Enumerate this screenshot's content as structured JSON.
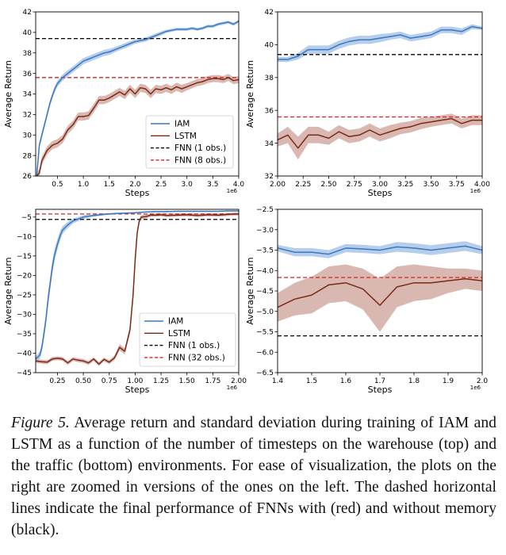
{
  "colors": {
    "iam": "#3a78c0",
    "iam_band": "#a9c6e8",
    "lstm": "#7b2a16",
    "lstm_band": "#d4aca5",
    "fnn_black": "#000000",
    "fnn_red": "#dd2222"
  },
  "caption": {
    "figure_label": "Figure 5.",
    "text": "Average return and standard deviation during training of IAM and LSTM as a function of the number of timesteps on the warehouse (top) and the traffic (bottom) environments. For ease of visualization, the plots on the right are zoomed in versions of the ones on the left. The dashed horizontal lines indicate the final performance of FNNs with (red) and without memory (black)."
  },
  "chart_data": [
    {
      "id": "warehouse-full",
      "type": "line",
      "xlabel": "Steps",
      "ylabel": "Average Return",
      "x_exponent": "1e6",
      "xlim": [
        0.08,
        4.0
      ],
      "ylim": [
        26,
        42
      ],
      "xticks": [
        0.5,
        1.0,
        1.5,
        2.0,
        2.5,
        3.0,
        3.5,
        4.0
      ],
      "xtick_labels": [
        "0.5",
        "1.0",
        "1.5",
        "2.0",
        "2.5",
        "3.0",
        "3.5",
        "4.0"
      ],
      "yticks": [
        26,
        28,
        30,
        32,
        34,
        36,
        38,
        40,
        42
      ],
      "ytick_labels": [
        "26",
        "28",
        "30",
        "32",
        "34",
        "36",
        "38",
        "40",
        "42"
      ],
      "legend": {
        "position": "lower-right",
        "entries": [
          {
            "label": "IAM",
            "style": "solid",
            "color_key": "iam"
          },
          {
            "label": "LSTM",
            "style": "solid",
            "color_key": "lstm"
          },
          {
            "label": "FNN (1 obs.)",
            "style": "dashed",
            "color_key": "fnn_black"
          },
          {
            "label": "FNN (8 obs.)",
            "style": "dashed",
            "color_key": "fnn_red"
          }
        ]
      },
      "hlines": [
        {
          "y": 39.4,
          "color_key": "fnn_black"
        },
        {
          "y": 35.6,
          "color_key": "fnn_red"
        }
      ],
      "series": [
        {
          "name": "IAM",
          "color_key": "iam",
          "band_key": "iam_band",
          "x": [
            0.1,
            0.15,
            0.2,
            0.25,
            0.3,
            0.35,
            0.4,
            0.45,
            0.5,
            0.55,
            0.6,
            0.7,
            0.8,
            0.9,
            1.0,
            1.1,
            1.2,
            1.3,
            1.4,
            1.5,
            1.6,
            1.7,
            1.8,
            1.9,
            2.0,
            2.1,
            2.2,
            2.3,
            2.4,
            2.5,
            2.6,
            2.7,
            2.8,
            2.9,
            3.0,
            3.1,
            3.2,
            3.3,
            3.4,
            3.5,
            3.6,
            3.7,
            3.8,
            3.9,
            4.0
          ],
          "y": [
            26.0,
            29.0,
            30.0,
            31.0,
            32.0,
            33.0,
            33.8,
            34.5,
            35.0,
            35.3,
            35.6,
            36.0,
            36.4,
            36.8,
            37.2,
            37.4,
            37.6,
            37.8,
            38.0,
            38.1,
            38.3,
            38.5,
            38.7,
            38.9,
            39.1,
            39.2,
            39.3,
            39.5,
            39.7,
            39.9,
            40.1,
            40.2,
            40.3,
            40.3,
            40.3,
            40.4,
            40.3,
            40.4,
            40.6,
            40.6,
            40.8,
            40.9,
            41.0,
            40.8,
            41.1
          ],
          "std": [
            0.2,
            0.3,
            0.3,
            0.3,
            0.3,
            0.3,
            0.3,
            0.3,
            0.3,
            0.3,
            0.3,
            0.3,
            0.3,
            0.3,
            0.3,
            0.3,
            0.3,
            0.3,
            0.3,
            0.3,
            0.25,
            0.25,
            0.25,
            0.25,
            0.2,
            0.2,
            0.2,
            0.2,
            0.2,
            0.2,
            0.15,
            0.15,
            0.15,
            0.15,
            0.15,
            0.15,
            0.15,
            0.15,
            0.15,
            0.15,
            0.15,
            0.15,
            0.15,
            0.15,
            0.15
          ]
        },
        {
          "name": "LSTM",
          "color_key": "lstm",
          "band_key": "lstm_band",
          "x": [
            0.1,
            0.15,
            0.2,
            0.3,
            0.4,
            0.5,
            0.6,
            0.7,
            0.8,
            0.9,
            1.0,
            1.1,
            1.2,
            1.3,
            1.4,
            1.5,
            1.6,
            1.7,
            1.8,
            1.9,
            2.0,
            2.1,
            2.2,
            2.3,
            2.4,
            2.5,
            2.6,
            2.7,
            2.8,
            2.9,
            3.0,
            3.1,
            3.2,
            3.3,
            3.4,
            3.5,
            3.6,
            3.7,
            3.8,
            3.9,
            4.0
          ],
          "y": [
            26.0,
            26.3,
            27.5,
            28.5,
            29.0,
            29.2,
            29.6,
            30.5,
            31.0,
            31.8,
            31.8,
            31.9,
            32.6,
            33.4,
            33.4,
            33.6,
            33.9,
            34.2,
            33.9,
            34.5,
            34.0,
            34.6,
            34.5,
            34.0,
            34.5,
            34.4,
            34.6,
            34.4,
            34.7,
            34.5,
            34.7,
            34.9,
            35.1,
            35.2,
            35.4,
            35.5,
            35.5,
            35.4,
            35.6,
            35.3,
            35.4
          ],
          "std": [
            0.3,
            0.4,
            0.4,
            0.4,
            0.4,
            0.4,
            0.4,
            0.4,
            0.4,
            0.4,
            0.4,
            0.4,
            0.4,
            0.4,
            0.4,
            0.4,
            0.4,
            0.4,
            0.4,
            0.4,
            0.4,
            0.4,
            0.4,
            0.4,
            0.4,
            0.4,
            0.4,
            0.4,
            0.4,
            0.4,
            0.35,
            0.35,
            0.35,
            0.35,
            0.35,
            0.35,
            0.35,
            0.35,
            0.35,
            0.35,
            0.35
          ]
        }
      ]
    },
    {
      "id": "warehouse-zoom",
      "type": "line",
      "xlabel": "Steps",
      "ylabel": "Average Return",
      "x_exponent": "1e6",
      "xlim": [
        2.0,
        4.0
      ],
      "ylim": [
        32,
        42
      ],
      "xticks": [
        2.0,
        2.25,
        2.5,
        2.75,
        3.0,
        3.25,
        3.5,
        3.75,
        4.0
      ],
      "xtick_labels": [
        "2.00",
        "2.25",
        "2.50",
        "2.75",
        "3.00",
        "3.25",
        "3.50",
        "3.75",
        "4.00"
      ],
      "yticks": [
        32,
        34,
        36,
        38,
        40,
        42
      ],
      "ytick_labels": [
        "32",
        "34",
        "36",
        "38",
        "40",
        "42"
      ],
      "hlines": [
        {
          "y": 39.4,
          "color_key": "fnn_black"
        },
        {
          "y": 35.6,
          "color_key": "fnn_red"
        }
      ],
      "series": [
        {
          "name": "IAM",
          "color_key": "iam",
          "band_key": "iam_band",
          "x": [
            2.0,
            2.1,
            2.2,
            2.3,
            2.4,
            2.5,
            2.6,
            2.7,
            2.8,
            2.9,
            3.0,
            3.1,
            3.2,
            3.3,
            3.4,
            3.5,
            3.6,
            3.7,
            3.8,
            3.9,
            4.0
          ],
          "y": [
            39.1,
            39.1,
            39.3,
            39.7,
            39.7,
            39.7,
            40.0,
            40.2,
            40.3,
            40.3,
            40.4,
            40.5,
            40.6,
            40.4,
            40.5,
            40.6,
            40.9,
            40.9,
            40.8,
            41.1,
            41.0
          ],
          "std": [
            0.15,
            0.15,
            0.2,
            0.25,
            0.25,
            0.25,
            0.25,
            0.25,
            0.25,
            0.25,
            0.25,
            0.2,
            0.2,
            0.2,
            0.2,
            0.2,
            0.2,
            0.2,
            0.2,
            0.15,
            0.1
          ]
        },
        {
          "name": "LSTM",
          "color_key": "lstm",
          "band_key": "lstm_band",
          "x": [
            2.0,
            2.1,
            2.2,
            2.3,
            2.4,
            2.5,
            2.6,
            2.7,
            2.8,
            2.9,
            3.0,
            3.1,
            3.2,
            3.3,
            3.4,
            3.5,
            3.6,
            3.7,
            3.8,
            3.9,
            4.0
          ],
          "y": [
            34.2,
            34.5,
            33.7,
            34.5,
            34.5,
            34.3,
            34.7,
            34.4,
            34.5,
            34.8,
            34.5,
            34.7,
            34.9,
            35.0,
            35.2,
            35.3,
            35.4,
            35.5,
            35.2,
            35.4,
            35.4
          ],
          "std": [
            0.4,
            0.5,
            0.7,
            0.5,
            0.5,
            0.4,
            0.4,
            0.4,
            0.4,
            0.4,
            0.4,
            0.4,
            0.35,
            0.35,
            0.35,
            0.3,
            0.3,
            0.3,
            0.3,
            0.3,
            0.3
          ]
        }
      ]
    },
    {
      "id": "traffic-full",
      "type": "line",
      "xlabel": "Steps",
      "ylabel": "Average Return",
      "x_exponent": "1e6",
      "xlim": [
        0.04,
        2.0
      ],
      "ylim": [
        -45,
        -3
      ],
      "xticks": [
        0.25,
        0.5,
        0.75,
        1.0,
        1.25,
        1.5,
        1.75,
        2.0
      ],
      "xtick_labels": [
        "0.25",
        "0.50",
        "0.75",
        "1.00",
        "1.25",
        "1.50",
        "1.75",
        "2.00"
      ],
      "yticks": [
        -45,
        -40,
        -35,
        -30,
        -25,
        -20,
        -15,
        -10,
        -5
      ],
      "ytick_labels": [
        "−45",
        "−40",
        "−35",
        "−30",
        "−25",
        "−20",
        "−15",
        "−10",
        "−5"
      ],
      "legend": {
        "position": "lower-right",
        "entries": [
          {
            "label": "IAM",
            "style": "solid",
            "color_key": "iam"
          },
          {
            "label": "LSTM",
            "style": "solid",
            "color_key": "lstm"
          },
          {
            "label": "FNN (1 obs.)",
            "style": "dashed",
            "color_key": "fnn_black"
          },
          {
            "label": "FNN (32 obs.)",
            "style": "dashed",
            "color_key": "fnn_red"
          }
        ]
      },
      "hlines": [
        {
          "y": -5.6,
          "color_key": "fnn_black"
        },
        {
          "y": -4.2,
          "color_key": "fnn_red"
        }
      ],
      "series": [
        {
          "name": "IAM",
          "color_key": "iam",
          "band_key": "iam_band",
          "x": [
            0.04,
            0.08,
            0.1,
            0.12,
            0.14,
            0.16,
            0.18,
            0.2,
            0.22,
            0.25,
            0.28,
            0.3,
            0.35,
            0.4,
            0.5,
            0.6,
            0.7,
            0.8,
            0.9,
            1.0,
            1.1,
            1.2,
            1.3,
            1.4,
            1.5,
            1.6,
            1.7,
            1.8,
            1.9,
            2.0
          ],
          "y": [
            -41.5,
            -40.5,
            -38.5,
            -35.0,
            -31.0,
            -26.0,
            -22.0,
            -18.0,
            -15.0,
            -12.0,
            -9.5,
            -8.3,
            -7.0,
            -6.0,
            -5.0,
            -4.6,
            -4.3,
            -4.1,
            -4.0,
            -3.9,
            -3.7,
            -3.6,
            -3.6,
            -3.5,
            -3.5,
            -3.5,
            -3.5,
            -3.5,
            -3.4,
            -3.4
          ],
          "std": [
            0.6,
            1.0,
            1.2,
            1.4,
            1.6,
            1.8,
            1.8,
            1.8,
            1.6,
            1.4,
            1.2,
            1.0,
            0.8,
            0.6,
            0.5,
            0.3,
            0.25,
            0.2,
            0.2,
            0.2,
            0.15,
            0.15,
            0.15,
            0.15,
            0.15,
            0.15,
            0.15,
            0.15,
            0.15,
            0.15
          ]
        },
        {
          "name": "LSTM",
          "color_key": "lstm",
          "band_key": "lstm_band",
          "x": [
            0.04,
            0.1,
            0.15,
            0.2,
            0.25,
            0.3,
            0.35,
            0.4,
            0.45,
            0.5,
            0.55,
            0.6,
            0.65,
            0.7,
            0.75,
            0.8,
            0.85,
            0.9,
            0.95,
            0.98,
            1.0,
            1.02,
            1.04,
            1.06,
            1.1,
            1.15,
            1.2,
            1.25,
            1.3,
            1.4,
            1.5,
            1.6,
            1.7,
            1.8,
            1.9,
            2.0
          ],
          "y": [
            -42.0,
            -42.2,
            -42.3,
            -41.5,
            -41.3,
            -41.5,
            -42.5,
            -41.5,
            -41.8,
            -42.0,
            -42.5,
            -41.5,
            -42.8,
            -41.6,
            -42.3,
            -41.2,
            -38.5,
            -39.5,
            -34.0,
            -25.0,
            -16.0,
            -9.0,
            -6.0,
            -5.0,
            -4.9,
            -4.5,
            -4.5,
            -4.4,
            -4.6,
            -4.5,
            -4.4,
            -4.6,
            -4.4,
            -4.5,
            -4.3,
            -4.2
          ],
          "std": [
            0.5,
            0.5,
            0.5,
            0.5,
            0.5,
            0.5,
            0.5,
            0.5,
            0.5,
            0.5,
            0.5,
            0.5,
            0.5,
            0.5,
            0.5,
            0.6,
            0.8,
            0.8,
            1.0,
            1.2,
            1.2,
            1.0,
            0.6,
            0.5,
            0.5,
            0.4,
            0.4,
            0.4,
            0.4,
            0.4,
            0.4,
            0.4,
            0.4,
            0.4,
            0.4,
            0.4
          ]
        }
      ]
    },
    {
      "id": "traffic-zoom",
      "type": "line",
      "xlabel": "Steps",
      "ylabel": "Average Return",
      "x_exponent": "1e6",
      "xlim": [
        1.4,
        2.0
      ],
      "ylim": [
        -6.5,
        -2.5
      ],
      "xticks": [
        1.4,
        1.5,
        1.6,
        1.7,
        1.8,
        1.9,
        2.0
      ],
      "xtick_labels": [
        "1.4",
        "1.5",
        "1.6",
        "1.7",
        "1.8",
        "1.9",
        "2.0"
      ],
      "yticks": [
        -6.5,
        -6.0,
        -5.5,
        -5.0,
        -4.5,
        -4.0,
        -3.5,
        -3.0,
        -2.5
      ],
      "ytick_labels": [
        "−6.5",
        "−6.0",
        "−5.5",
        "−5.0",
        "−4.5",
        "−4.0",
        "−3.5",
        "−3.0",
        "−2.5"
      ],
      "hlines": [
        {
          "y": -5.6,
          "color_key": "fnn_black"
        },
        {
          "y": -4.17,
          "color_key": "fnn_red"
        }
      ],
      "series": [
        {
          "name": "IAM",
          "color_key": "iam",
          "band_key": "iam_band",
          "x": [
            1.4,
            1.45,
            1.5,
            1.55,
            1.6,
            1.65,
            1.7,
            1.75,
            1.8,
            1.85,
            1.9,
            1.95,
            2.0
          ],
          "y": [
            -3.45,
            -3.55,
            -3.55,
            -3.6,
            -3.45,
            -3.47,
            -3.5,
            -3.42,
            -3.45,
            -3.5,
            -3.45,
            -3.4,
            -3.5
          ],
          "std": [
            0.08,
            0.1,
            0.1,
            0.1,
            0.1,
            0.1,
            0.1,
            0.12,
            0.12,
            0.12,
            0.12,
            0.12,
            0.1
          ]
        },
        {
          "name": "LSTM",
          "color_key": "lstm",
          "band_key": "lstm_band",
          "x": [
            1.4,
            1.45,
            1.5,
            1.55,
            1.6,
            1.65,
            1.7,
            1.75,
            1.8,
            1.85,
            1.9,
            1.95,
            2.0
          ],
          "y": [
            -4.9,
            -4.7,
            -4.6,
            -4.35,
            -4.3,
            -4.45,
            -4.85,
            -4.4,
            -4.3,
            -4.3,
            -4.25,
            -4.2,
            -4.25
          ],
          "std": [
            0.35,
            0.4,
            0.45,
            0.45,
            0.45,
            0.5,
            0.65,
            0.5,
            0.45,
            0.4,
            0.3,
            0.25,
            0.25
          ]
        }
      ]
    }
  ]
}
